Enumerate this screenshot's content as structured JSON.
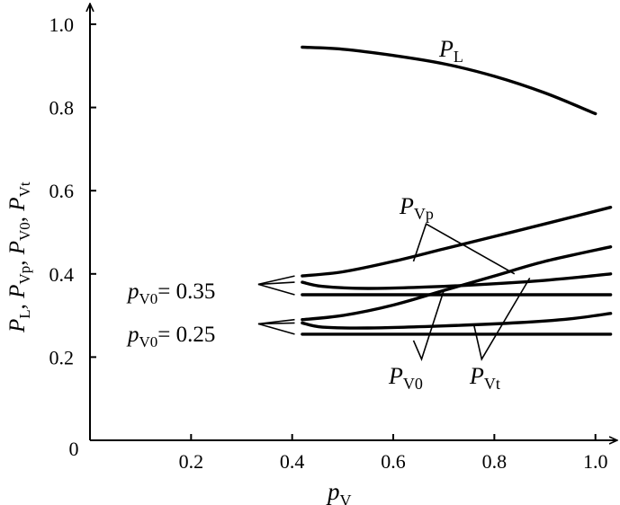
{
  "chart_data": {
    "type": "line",
    "xlabel_base": "p",
    "xlabel_sub": "V",
    "ylabel": [
      {
        "base": "P",
        "sub": "L"
      },
      {
        "base": "P",
        "sub": "Vp"
      },
      {
        "base": "P",
        "sub": "V0"
      },
      {
        "base": "P",
        "sub": "Vt"
      }
    ],
    "ylabel_separator": ", ",
    "xlim": [
      0,
      1.05
    ],
    "ylim": [
      0,
      1.0
    ],
    "x_ticks": [
      "0.2",
      "0.4",
      "0.6",
      "0.8",
      "1.0"
    ],
    "y_ticks": [
      "0.2",
      "0.4",
      "0.6",
      "0.8",
      "1.0"
    ],
    "origin_label": "0",
    "grid": false,
    "series": [
      {
        "name": "P_L",
        "x": [
          0.42,
          0.5,
          0.6,
          0.7,
          0.8,
          0.9,
          1.0
        ],
        "y": [
          0.945,
          0.94,
          0.925,
          0.905,
          0.875,
          0.835,
          0.785
        ]
      },
      {
        "name": "P_Vp (p_V0 = 0.35)",
        "x": [
          0.42,
          0.5,
          0.6,
          0.7,
          0.8,
          0.9,
          1.03
        ],
        "y": [
          0.395,
          0.405,
          0.43,
          0.46,
          0.49,
          0.52,
          0.56
        ]
      },
      {
        "name": "P_V0 (p_V0 = 0.35)",
        "x": [
          0.42,
          1.03
        ],
        "y": [
          0.35,
          0.35
        ]
      },
      {
        "name": "P_Vt (p_V0 = 0.35)",
        "x": [
          0.42,
          0.46,
          0.55,
          0.7,
          0.85,
          0.95,
          1.03
        ],
        "y": [
          0.38,
          0.37,
          0.365,
          0.37,
          0.38,
          0.39,
          0.4
        ]
      },
      {
        "name": "P_Vp (p_V0 = 0.25)",
        "x": [
          0.42,
          0.5,
          0.6,
          0.7,
          0.8,
          0.9,
          1.03
        ],
        "y": [
          0.29,
          0.3,
          0.325,
          0.36,
          0.395,
          0.43,
          0.465
        ]
      },
      {
        "name": "P_V0 (p_V0 = 0.25)",
        "x": [
          0.42,
          1.03
        ],
        "y": [
          0.255,
          0.255
        ]
      },
      {
        "name": "P_Vt (p_V0 = 0.25)",
        "x": [
          0.42,
          0.46,
          0.55,
          0.7,
          0.85,
          0.95,
          1.03
        ],
        "y": [
          0.282,
          0.272,
          0.27,
          0.275,
          0.283,
          0.292,
          0.305
        ]
      }
    ],
    "annotations": {
      "PL": {
        "base": "P",
        "sub": "L"
      },
      "PVp": {
        "base": "P",
        "sub": "Vp"
      },
      "PV0": {
        "base": "P",
        "sub": "V0"
      },
      "PVt": {
        "base": "P",
        "sub": "Vt"
      },
      "group_035": {
        "base": "p",
        "sub": "V0",
        "value": "= 0.35"
      },
      "group_025": {
        "base": "p",
        "sub": "V0",
        "value": "= 0.25"
      }
    }
  }
}
